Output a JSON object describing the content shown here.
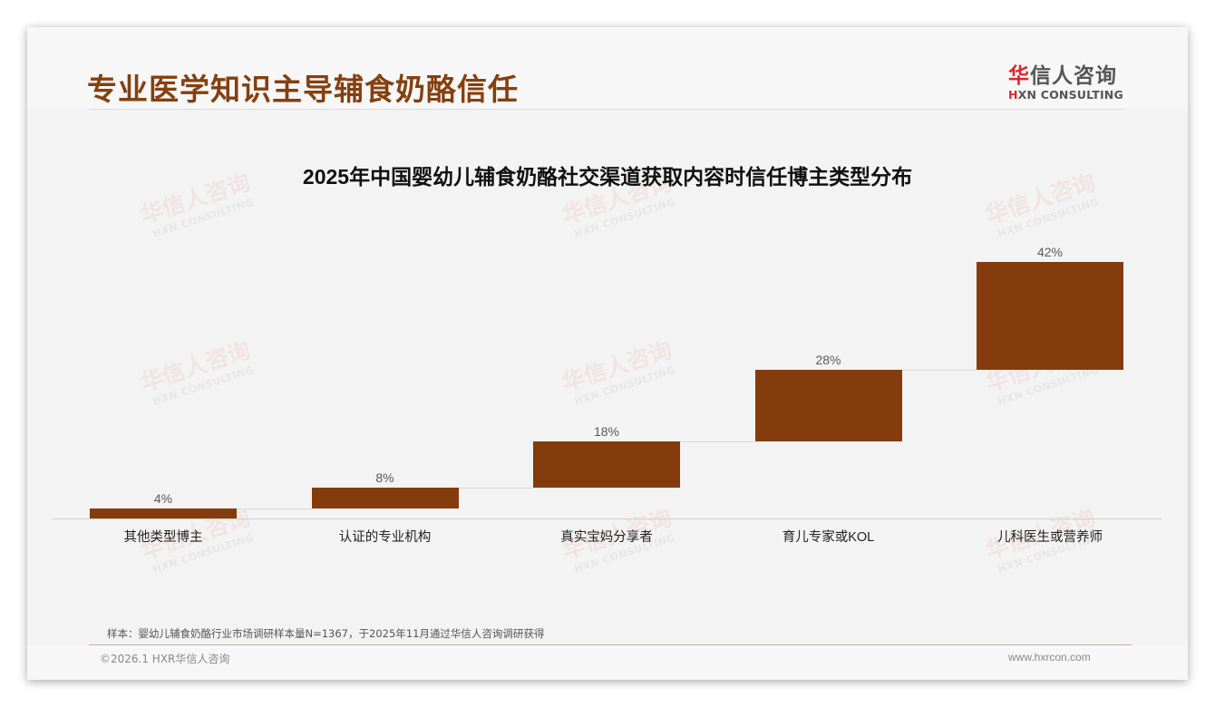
{
  "header": {
    "title": "专业医学知识主导辅食奶酪信任",
    "logo": {
      "cn_accent": "华",
      "cn_rest": "信人咨询",
      "en_accent": "H",
      "en_rest": "XN CONSULTING"
    }
  },
  "watermark": {
    "cn": "华信人咨询",
    "en": "HXN CONSULTING"
  },
  "colors": {
    "bar": "#843c0c",
    "title": "#84400f",
    "logo_accent": "#d7282f"
  },
  "chart_data": {
    "type": "bar",
    "subtype": "waterfall",
    "title": "2025年中国婴幼儿辅食奶酪社交渠道获取内容时信任博主类型分布",
    "categories": [
      "其他类型博主",
      "认证的专业机构",
      "真实宝妈分享者",
      "育儿专家或KOL",
      "儿科医生或营养师"
    ],
    "values": [
      4,
      8,
      18,
      28,
      42
    ],
    "value_labels": [
      "4%",
      "8%",
      "18%",
      "28%",
      "42%"
    ],
    "unit": "%",
    "xlabel": "",
    "ylabel": "",
    "ylim": [
      0,
      100
    ],
    "grid": false,
    "legend": null
  },
  "footer": {
    "source": "样本：婴幼儿辅食奶酪行业市场调研样本量N=1367，于2025年11月通过华信人咨询调研获得",
    "copyright": "©2026.1 HXR华信人咨询",
    "website": "www.hxrcon.com"
  }
}
